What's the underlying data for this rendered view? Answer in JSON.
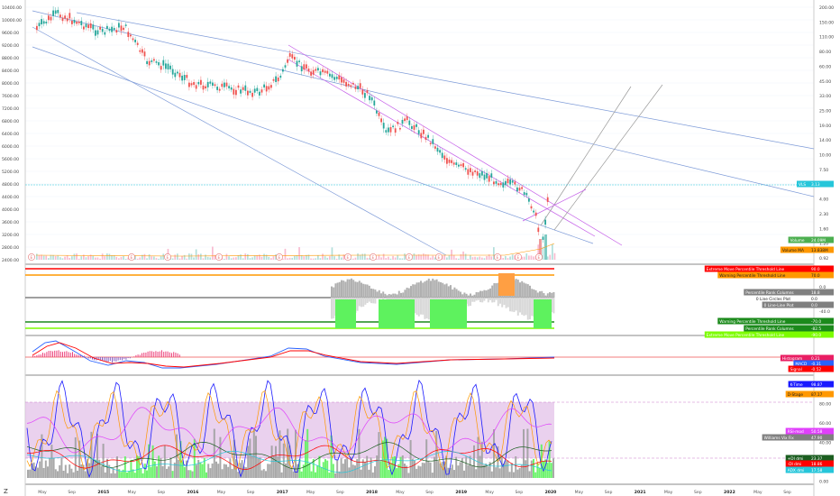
{
  "left_axis": {
    "price_ticks": [
      "10400.00",
      "10000.00",
      "9600.00",
      "9200.00",
      "8800.00",
      "8400.00",
      "8000.00",
      "7600.00",
      "7200.00",
      "6800.00",
      "6400.00",
      "6000.00",
      "5600.00",
      "5200.00",
      "4800.00",
      "4400.00",
      "4000.00",
      "3600.00",
      "3200.00",
      "2800.00",
      "2400.00"
    ]
  },
  "right_axis": {
    "ticks": [
      "200.00",
      "150.00",
      "110.00",
      "80.00",
      "60.00",
      "45.00",
      "33.00",
      "25.00",
      "19.00",
      "14.00",
      "10.00",
      "7.50",
      "5.50",
      "4.00",
      "2.30",
      "1.60",
      "1.20",
      "0.92"
    ],
    "lower_ticks": {
      "p1": [
        "0.0",
        "-40.0"
      ],
      "p3": [
        "100.00",
        "80.00",
        "60.00",
        "40.00",
        "20.00",
        "0.00"
      ]
    }
  },
  "price_tag": {
    "label": "VLS",
    "value": "3.13",
    "color": "#26c6da"
  },
  "volume_tags": [
    {
      "label": "Volume",
      "value": "24.09M",
      "color": "#4caf50"
    },
    {
      "label": "Volume MA",
      "value": "13.838M",
      "color": "#ff9800"
    }
  ],
  "event_markers": [
    "E",
    "E",
    "E",
    "E",
    "E",
    "E",
    "E",
    "E",
    "E",
    "E",
    "E",
    "E"
  ],
  "indicator1_tags": [
    {
      "label": "Extreme Move Percentile Threshold Line",
      "value": "90.0",
      "color": "#ff0000"
    },
    {
      "label": "Warning Percentile Threshold Line",
      "value": "70.0",
      "color": "#ff9800"
    },
    {
      "label": "Percentile Rank Columns",
      "value": "18.8",
      "color": "#808080"
    },
    {
      "label": "0 Line Circles Plot",
      "value": "0.0",
      "color": "#ffffff"
    },
    {
      "label": "0 Line-Line Plot",
      "value": "0.0",
      "color": "#808080"
    },
    {
      "label": "Warning Percentile Threshold Line",
      "value": "-70.0",
      "color": "#1b8a1b"
    },
    {
      "label": "Percentile Rank Columns",
      "value": "-82.5",
      "color": "#1b8a1b"
    },
    {
      "label": "Extreme Move Percentile Threshold Line",
      "value": "-90.0",
      "color": "#7cfc00"
    }
  ],
  "macd_tags": [
    {
      "label": "Histogram",
      "value": "0.21",
      "color": "#e91e63"
    },
    {
      "label": "MACD",
      "value": "-0.31",
      "color": "#2962ff"
    },
    {
      "label": "Signal",
      "value": "-0.52",
      "color": "#ff0000"
    }
  ],
  "osc_tags": [
    {
      "label": "K-Time",
      "value": "98.87",
      "color": "#1a1aff"
    },
    {
      "label": "D-Stage",
      "value": "87.17",
      "color": "#ff9800"
    },
    {
      "label": "RSI-mod",
      "value": "50.58",
      "color": "#e040fb"
    },
    {
      "label": "Williams Vix Fix",
      "value": "47.90",
      "color": "#808080"
    },
    {
      "label": "+DI dmi",
      "value": "23.37",
      "color": "#1b5e20"
    },
    {
      "label": "-DI dmi",
      "value": "18.86",
      "color": "#ff0000"
    },
    {
      "label": "ADX dmi",
      "value": "17.58",
      "color": "#26c6da"
    }
  ],
  "time_axis": {
    "labels": [
      "May",
      "Sep",
      "2015",
      "May",
      "Sep",
      "2016",
      "May",
      "Sep",
      "2017",
      "May",
      "Sep",
      "2018",
      "May",
      "Sep",
      "2019",
      "May",
      "Sep",
      "2020",
      "May",
      "Sep",
      "2021",
      "May",
      "Sep",
      "2022",
      "May",
      "Sep"
    ],
    "year_labels": [
      "2015",
      "2016",
      "2017",
      "2018",
      "2019",
      "2020",
      "2021",
      "2022"
    ]
  },
  "chart_data": {
    "type": "line",
    "title": "",
    "xlabel": "",
    "ylabel": "",
    "x_range": [
      "2014-04",
      "2022-12"
    ],
    "ylim": [
      2400,
      10400
    ],
    "series": [
      {
        "values_approx_price_left_axis": [
          [
            "2014-04",
            9700
          ],
          [
            "2014-07",
            10200
          ],
          [
            "2014-10",
            9900
          ],
          [
            "2015-01",
            9600
          ],
          [
            "2015-04",
            9800
          ],
          [
            "2015-07",
            8700
          ],
          [
            "2015-10",
            8500
          ],
          [
            "2016-01",
            8000
          ],
          [
            "2016-04",
            7900
          ],
          [
            "2016-07",
            7800
          ],
          [
            "2016-10",
            7700
          ],
          [
            "2017-01",
            8200
          ],
          [
            "2017-02",
            8800
          ],
          [
            "2017-05",
            8400
          ],
          [
            "2017-08",
            8200
          ],
          [
            "2017-11",
            7900
          ],
          [
            "2018-01",
            7600
          ],
          [
            "2018-03",
            6400
          ],
          [
            "2018-06",
            6800
          ],
          [
            "2018-09",
            6200
          ],
          [
            "2018-12",
            5400
          ],
          [
            "2019-03",
            5200
          ],
          [
            "2019-06",
            4900
          ],
          [
            "2019-09",
            4700
          ],
          [
            "2019-11",
            4000
          ],
          [
            "2019-12",
            2800
          ],
          [
            "2020-01",
            4600
          ]
        ]
      }
    ]
  }
}
